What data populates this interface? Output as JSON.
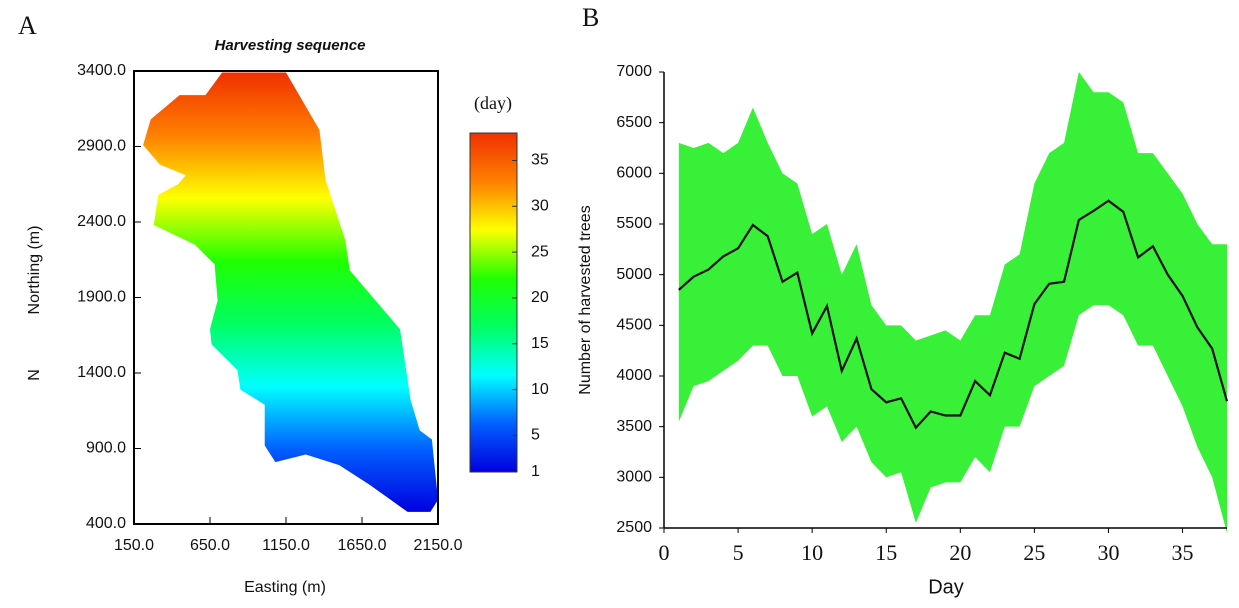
{
  "chart_data": [
    {
      "type": "map",
      "panel": "A",
      "title": "Harvesting sequence",
      "xlabel": "Easting (m)",
      "ylabel": "Northing (m)",
      "side_label": "N",
      "xlim": [
        150,
        2150
      ],
      "ylim": [
        400,
        3400
      ],
      "xticks": [
        {
          "value": 150,
          "label": "150.0"
        },
        {
          "value": 650,
          "label": "650.0"
        },
        {
          "value": 1150,
          "label": "1150.0"
        },
        {
          "value": 1650,
          "label": "1650.0"
        },
        {
          "value": 2150,
          "label": "2150.0"
        }
      ],
      "yticks": [
        {
          "value": 400,
          "label": "400.0"
        },
        {
          "value": 900,
          "label": "900.0"
        },
        {
          "value": 1400,
          "label": "1400.0"
        },
        {
          "value": 1900,
          "label": "1900.0"
        },
        {
          "value": 2400,
          "label": "2400.0"
        },
        {
          "value": 2900,
          "label": "2900.0"
        },
        {
          "value": 3400,
          "label": "3400.0"
        }
      ],
      "outline_x": [
        730,
        1150,
        1370,
        1410,
        1540,
        1570,
        1900,
        1970,
        2030,
        2110,
        2150,
        2100,
        1950,
        1700,
        1500,
        1280,
        1080,
        1010,
        1010,
        850,
        830,
        660,
        650,
        700,
        680,
        550,
        280,
        310,
        440,
        490,
        320,
        210,
        260,
        450,
        620
      ],
      "outline_y": [
        3390,
        3390,
        3010,
        2680,
        2280,
        2080,
        1690,
        1220,
        1020,
        960,
        560,
        480,
        480,
        660,
        790,
        860,
        810,
        920,
        1190,
        1290,
        1420,
        1590,
        1690,
        1880,
        2120,
        2250,
        2380,
        2580,
        2650,
        2710,
        2780,
        2910,
        3080,
        3240,
        3240
      ],
      "colorbar": {
        "label": "(day)",
        "lim": [
          1,
          38
        ],
        "ticks": [
          1,
          5,
          10,
          15,
          20,
          25,
          30,
          35
        ],
        "colormap": [
          "#0000e0",
          "#0060ff",
          "#00ffff",
          "#00ff60",
          "#20ff00",
          "#ffff00",
          "#ff8000",
          "#f03000"
        ]
      }
    },
    {
      "type": "line",
      "panel": "B",
      "xlabel": "Day",
      "ylabel": "Number of harvested trees",
      "xlim": [
        0,
        38
      ],
      "ylim": [
        2500,
        7000
      ],
      "xticks": [
        0,
        5,
        10,
        15,
        20,
        25,
        30,
        35
      ],
      "yticks": [
        2500,
        3000,
        3500,
        4000,
        4500,
        5000,
        5500,
        6000,
        6500,
        7000
      ],
      "x": [
        1,
        2,
        3,
        4,
        5,
        6,
        7,
        8,
        9,
        10,
        11,
        12,
        13,
        14,
        15,
        16,
        17,
        18,
        19,
        20,
        21,
        22,
        23,
        24,
        25,
        26,
        27,
        28,
        29,
        30,
        31,
        32,
        33,
        34,
        35,
        36,
        37,
        38
      ],
      "band": {
        "color": "#22ee22",
        "high": [
          6300,
          6250,
          6300,
          6200,
          6300,
          6650,
          6300,
          6000,
          5900,
          5400,
          5500,
          5000,
          5300,
          4700,
          4500,
          4500,
          4350,
          4400,
          4450,
          4350,
          4600,
          4600,
          5100,
          5200,
          5900,
          6200,
          6300,
          7000,
          6800,
          6800,
          6700,
          6200,
          6200,
          6000,
          5800,
          5500,
          5300,
          5300
        ],
        "low": [
          3550,
          3900,
          3950,
          4050,
          4150,
          4300,
          4300,
          4000,
          4000,
          3600,
          3700,
          3350,
          3500,
          3150,
          3000,
          3050,
          2550,
          2900,
          2950,
          2950,
          3200,
          3050,
          3500,
          3500,
          3900,
          4000,
          4100,
          4600,
          4700,
          4700,
          4600,
          4300,
          4300,
          4000,
          3700,
          3300,
          3000,
          2450
        ]
      },
      "series": [
        {
          "color": "#111111",
          "values": [
            4850,
            4980,
            5050,
            5180,
            5260,
            5490,
            5380,
            4930,
            5020,
            4420,
            4690,
            4050,
            4370,
            3870,
            3740,
            3780,
            3490,
            3650,
            3610,
            3610,
            3950,
            3810,
            4230,
            4170,
            4710,
            4910,
            4930,
            5540,
            5630,
            5730,
            5620,
            5170,
            5280,
            5000,
            4790,
            4480,
            4270,
            3750
          ]
        }
      ]
    }
  ]
}
